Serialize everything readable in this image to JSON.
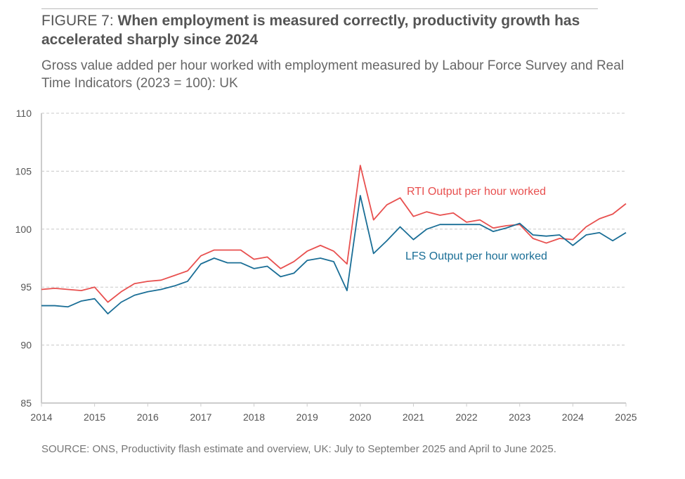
{
  "figure_label": "FIGURE 7:",
  "title": "When employment is measured correctly, productivity growth has accelerated sharply since 2024",
  "subtitle": "Gross value added per hour worked with employment measured by Labour Force Survey and Real Time Indicators (2023 = 100): UK",
  "source": "SOURCE: ONS, Productivity flash estimate and overview, UK: July to September 2025 and April to June 2025.",
  "chart_data": {
    "type": "line",
    "title": "When employment is measured correctly, productivity growth has accelerated sharply since 2024",
    "xlabel": "",
    "ylabel": "",
    "xlim": [
      2014,
      2025
    ],
    "ylim": [
      85,
      110
    ],
    "x_ticks": [
      "2014",
      "2015",
      "2016",
      "2017",
      "2018",
      "2019",
      "2020",
      "2021",
      "2022",
      "2023",
      "2024",
      "2025"
    ],
    "y_ticks": [
      "85",
      "90",
      "95",
      "100",
      "105",
      "110"
    ],
    "grid": "horizontal dashed",
    "x_start": 2014,
    "x_step": 0.25,
    "series": [
      {
        "name": "RTI Output per hour worked",
        "color": "#e8504f",
        "values": [
          94.8,
          94.9,
          94.8,
          94.7,
          95.0,
          93.7,
          94.6,
          95.3,
          95.5,
          95.6,
          96.0,
          96.4,
          97.7,
          98.2,
          98.2,
          98.2,
          97.4,
          97.6,
          96.6,
          97.2,
          98.1,
          98.6,
          98.1,
          97.0,
          105.5,
          100.8,
          102.1,
          102.7,
          101.1,
          101.5,
          101.2,
          101.4,
          100.6,
          100.8,
          100.1,
          100.3,
          100.4,
          99.2,
          98.8,
          99.2,
          99.1,
          100.2,
          100.9,
          101.3,
          102.2
        ]
      },
      {
        "name": "LFS Output per hour worked",
        "color": "#1a6e96",
        "values": [
          93.4,
          93.4,
          93.3,
          93.8,
          94.0,
          92.7,
          93.7,
          94.3,
          94.6,
          94.8,
          95.1,
          95.5,
          97.0,
          97.5,
          97.1,
          97.1,
          96.6,
          96.8,
          95.9,
          96.2,
          97.3,
          97.5,
          97.2,
          94.7,
          102.9,
          97.9,
          99.0,
          100.2,
          99.1,
          100.0,
          100.4,
          100.4,
          100.4,
          100.4,
          99.8,
          100.1,
          100.5,
          99.5,
          99.4,
          99.5,
          98.6,
          99.5,
          99.7,
          99.0,
          99.7
        ]
      }
    ]
  }
}
